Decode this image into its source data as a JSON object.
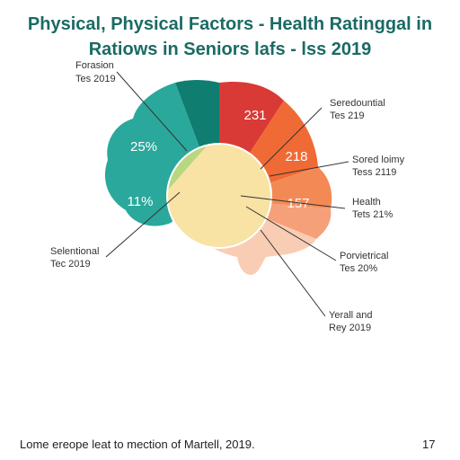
{
  "title_line1": "Physical, Physical Factors - Health Ratinggal in",
  "title_line2": "Ratiows in Seniors lafs - lss 2019",
  "footer": {
    "note": "Lome ereope leat to mection of Martell, 2019.",
    "page": "17"
  },
  "colors": {
    "title": "#1a6b64",
    "teal_light": "#2aa89b",
    "teal_dark": "#0f7d70",
    "red": "#d93a35",
    "orange": "#f06a35",
    "orange_light": "#f38a55",
    "salmon": "#f6a07a",
    "peach": "#f9cdb4",
    "green": "#b9d77f",
    "yellow": "#f8e3a4"
  },
  "chart_data": {
    "type": "pie",
    "title": "Physical, Physical Factors - Health Ratinggal in Ratiows in Seniors lafs - lss 2019",
    "data_labels": [
      {
        "id": "red",
        "text": "231"
      },
      {
        "id": "orange",
        "text": "218"
      },
      {
        "id": "orange_light",
        "text": "157"
      },
      {
        "id": "teal",
        "text": "25%"
      },
      {
        "id": "teal_low",
        "text": "11%"
      }
    ],
    "callouts": [
      {
        "id": "foration",
        "line1": "Forasion",
        "line2": "Tes 2019",
        "side": "left"
      },
      {
        "id": "seredountial",
        "line1": "Seredountial",
        "line2": "Tes 219",
        "side": "right"
      },
      {
        "id": "sored",
        "line1": "Sored loimy",
        "line2": "Tess 2119",
        "side": "right"
      },
      {
        "id": "health",
        "line1": "Health",
        "line2": "Tets 21%",
        "side": "right"
      },
      {
        "id": "selectional",
        "line1": "Selentional",
        "line2": "Tec 2019",
        "side": "left"
      },
      {
        "id": "porvietrical",
        "line1": "Porvietrical",
        "line2": "Tes 20%",
        "side": "right"
      },
      {
        "id": "yerall",
        "line1": "Yerall and",
        "line2": "Rey 2019",
        "side": "right"
      }
    ]
  }
}
